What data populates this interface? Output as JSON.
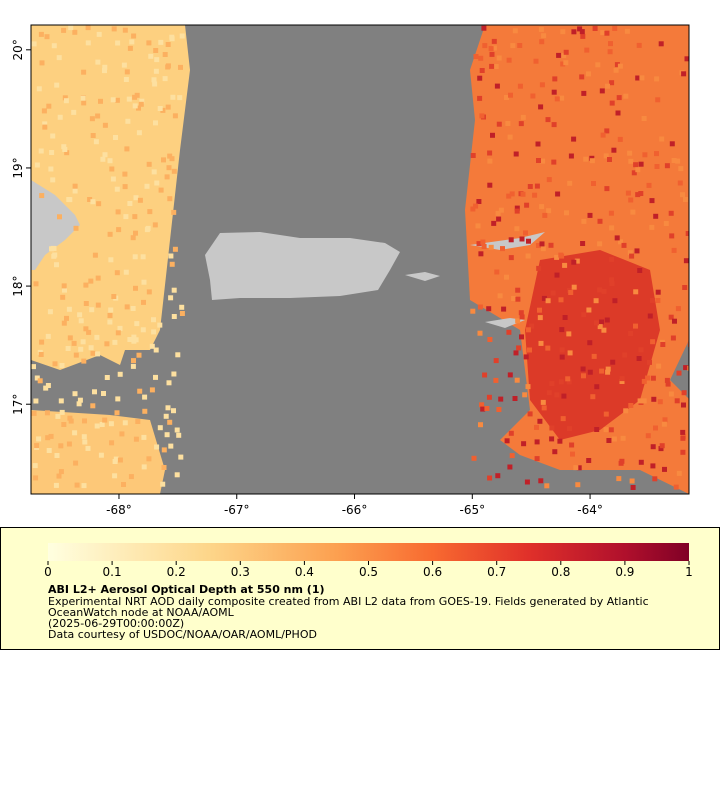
{
  "map": {
    "xlim": [
      -68.747,
      -63.16
    ],
    "ylim": [
      16.24,
      20.21
    ],
    "xticks": [
      {
        "value": -68,
        "label": "-68°"
      },
      {
        "value": -67,
        "label": "-67°"
      },
      {
        "value": -66,
        "label": "-66°"
      },
      {
        "value": -65,
        "label": "-65°"
      },
      {
        "value": -64,
        "label": "-64°"
      }
    ],
    "yticks": [
      {
        "value": 17,
        "label": "17°"
      },
      {
        "value": 18,
        "label": "18°"
      },
      {
        "value": 19,
        "label": "19°"
      },
      {
        "value": 20,
        "label": "20°"
      }
    ]
  },
  "colorbar": {
    "lim": [
      0,
      1
    ],
    "ticks": [
      0,
      0.1,
      0.2,
      0.3,
      0.4,
      0.5,
      0.6,
      0.7,
      0.8,
      0.9,
      1
    ]
  },
  "legend": {
    "title": "ABI L2+ Aerosol Optical Depth at 550 nm (1)",
    "lines": [
      "Experimental NRT AOD daily composite created from ABI L2 data from GOES-19. Fields generated by Atlantic",
      "OceanWatch node at NOAA/AOML",
      "(2025-06-29T00:00:00Z)",
      "Data courtesy of USDOC/NOAA/OAR/AOML/PHOD"
    ]
  }
}
